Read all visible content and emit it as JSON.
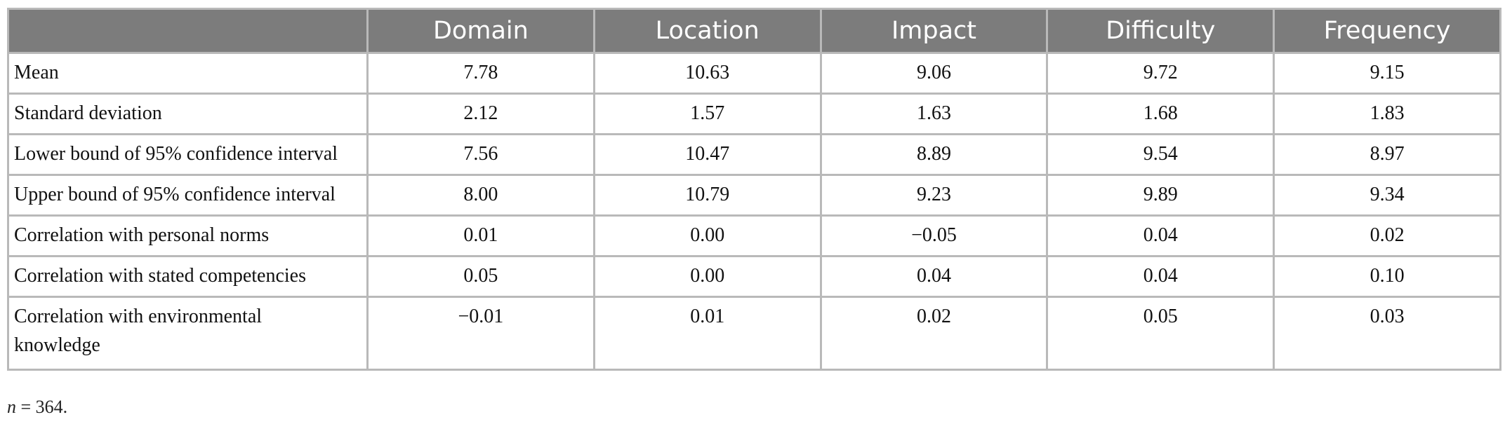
{
  "table": {
    "headers": [
      "",
      "Domain",
      "Location",
      "Impact",
      "Difficulty",
      "Frequency"
    ],
    "rows": [
      {
        "label": "Mean",
        "values": [
          "7.78",
          "10.63",
          "9.06",
          "9.72",
          "9.15"
        ]
      },
      {
        "label": "Standard deviation",
        "values": [
          "2.12",
          "1.57",
          "1.63",
          "1.68",
          "1.83"
        ]
      },
      {
        "label": "Lower bound of 95% confidence interval",
        "values": [
          "7.56",
          "10.47",
          "8.89",
          "9.54",
          "8.97"
        ]
      },
      {
        "label": "Upper bound of 95% confidence interval",
        "values": [
          "8.00",
          "10.79",
          "9.23",
          "9.89",
          "9.34"
        ]
      },
      {
        "label": "Correlation with personal norms",
        "values": [
          "0.01",
          "0.00",
          "−0.05",
          "0.04",
          "0.02"
        ]
      },
      {
        "label": "Correlation with stated competencies",
        "values": [
          "0.05",
          "0.00",
          "0.04",
          "0.04",
          "0.10"
        ]
      },
      {
        "label": "Correlation with environmental knowledge",
        "values": [
          "−0.01",
          "0.01",
          "0.02",
          "0.05",
          "0.03"
        ]
      }
    ]
  },
  "note": {
    "variable": "n",
    "text": " = 364."
  }
}
